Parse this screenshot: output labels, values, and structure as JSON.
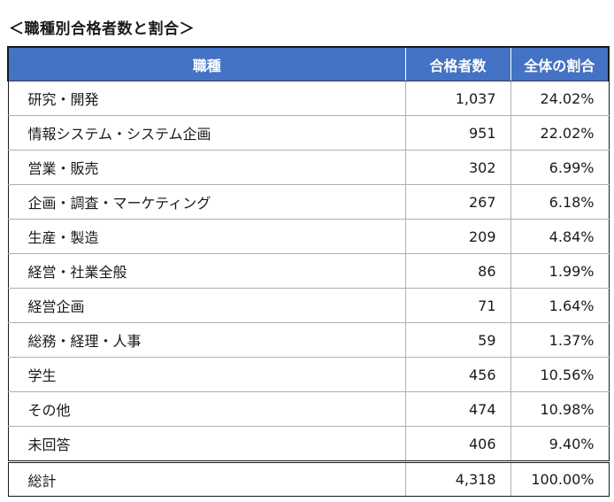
{
  "title": "＜職種別合格者数と割合＞",
  "headers": [
    "職種",
    "合格者数",
    "全体の割合"
  ],
  "rows": [
    {
      "name": "研究・開発",
      "count": "1,037",
      "ratio": "24.02%"
    },
    {
      "name": "情報システム・システム企画",
      "count": "951",
      "ratio": "22.02%"
    },
    {
      "name": "営業・販売",
      "count": "302",
      "ratio": "6.99%"
    },
    {
      "name": "企画・調査・マーケティング",
      "count": "267",
      "ratio": "6.18%"
    },
    {
      "name": "生産・製造",
      "count": "209",
      "ratio": "4.84%"
    },
    {
      "name": "経営・社業全般",
      "count": "86",
      "ratio": "1.99%"
    },
    {
      "name": "経営企画",
      "count": "71",
      "ratio": "1.64%"
    },
    {
      "name": "総務・経理・人事",
      "count": "59",
      "ratio": "1.37%"
    },
    {
      "name": "学生",
      "count": "456",
      "ratio": "10.56%"
    },
    {
      "name": "その他",
      "count": "474",
      "ratio": "10.98%"
    },
    {
      "name": "未回答",
      "count": "406",
      "ratio": "9.40%"
    }
  ],
  "total": {
    "name": "総計",
    "count": "4,318",
    "ratio": "100.00%"
  },
  "colors": {
    "header_bg": "#4472c4",
    "header_text": "#ffffff",
    "border": "#b0b0b0",
    "frame": "#1a1a1a"
  }
}
